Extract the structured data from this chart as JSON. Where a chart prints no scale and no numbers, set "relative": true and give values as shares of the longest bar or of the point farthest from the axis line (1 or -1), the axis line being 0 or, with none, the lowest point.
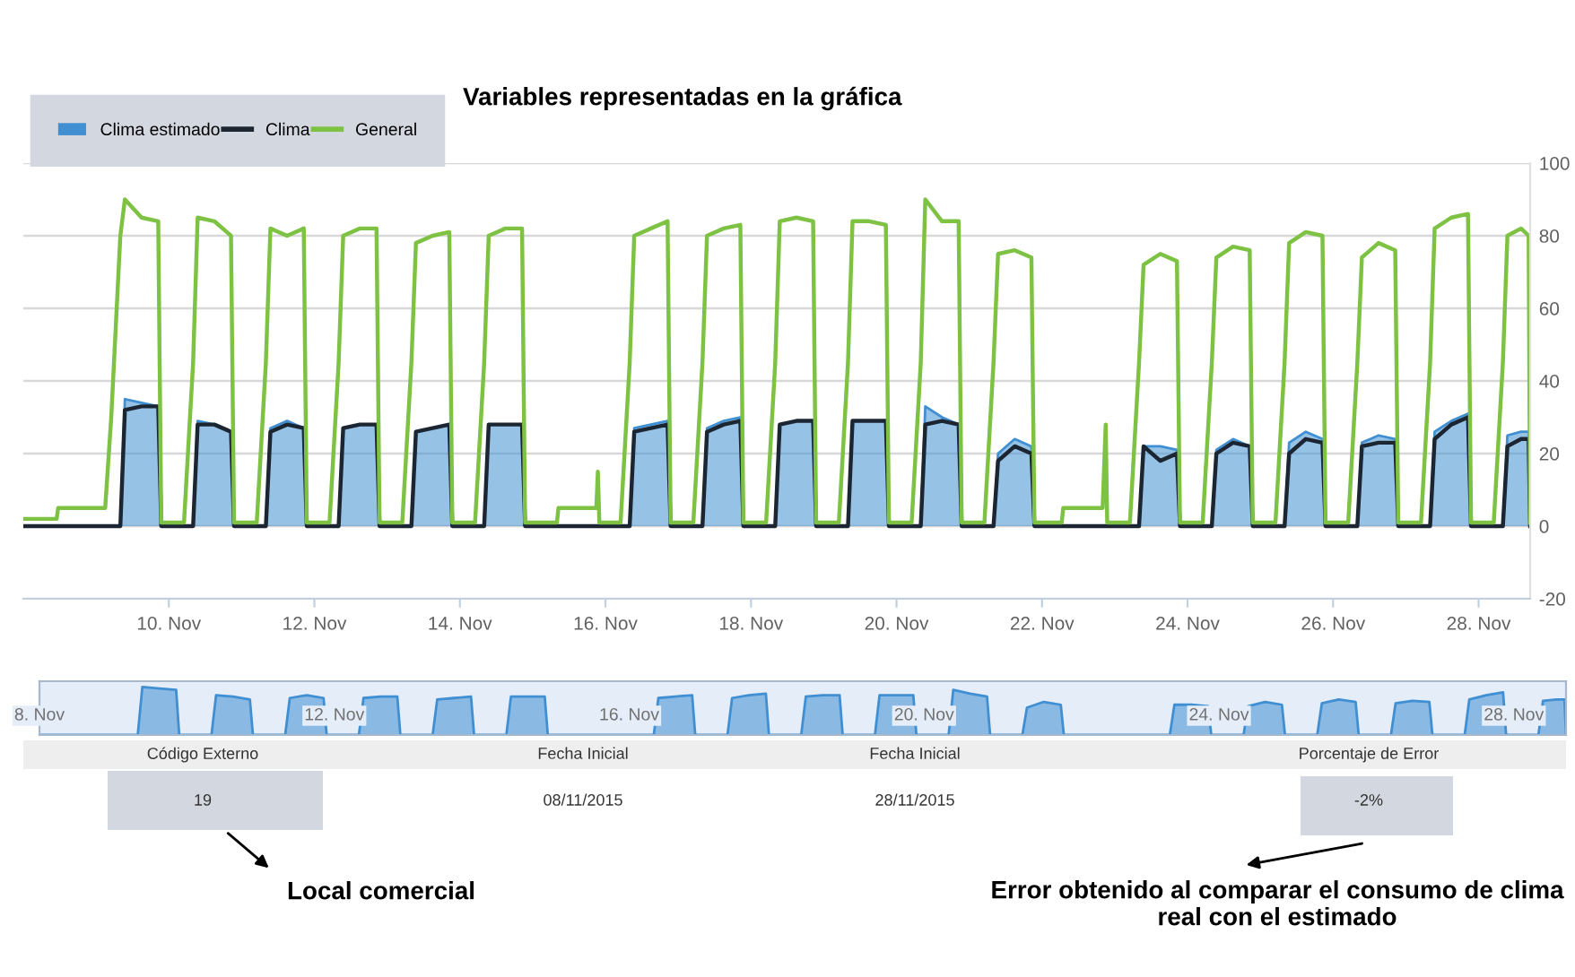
{
  "chart_data": [
    {
      "type": "line",
      "x": [
        "2015-11-08T00:00",
        "2015-11-08T11:00",
        "2015-11-08T11:30",
        "2015-11-09T03:00",
        "2015-11-09T05:00",
        "2015-11-09T08:00",
        "2015-11-09T09:30",
        "2015-11-09T15:00",
        "2015-11-09T20:30",
        "2015-11-09T21:30",
        "2015-11-10T05:00",
        "2015-11-10T08:00",
        "2015-11-10T09:30",
        "2015-11-10T15:00",
        "2015-11-10T20:30",
        "2015-11-10T21:30",
        "2015-11-11T05:00",
        "2015-11-11T08:00",
        "2015-11-11T09:30",
        "2015-11-11T15:00",
        "2015-11-11T20:30",
        "2015-11-11T21:30",
        "2015-11-12T05:00",
        "2015-11-12T08:00",
        "2015-11-12T09:30",
        "2015-11-12T15:00",
        "2015-11-12T20:30",
        "2015-11-12T21:30",
        "2015-11-13T05:00",
        "2015-11-13T08:00",
        "2015-11-13T09:30",
        "2015-11-13T15:00",
        "2015-11-13T20:30",
        "2015-11-13T21:30",
        "2015-11-14T05:00",
        "2015-11-14T08:00",
        "2015-11-14T09:30",
        "2015-11-14T15:00",
        "2015-11-14T20:30",
        "2015-11-14T21:30",
        "2015-11-15T08:00",
        "2015-11-15T08:30",
        "2015-11-15T21:00",
        "2015-11-15T21:30",
        "2015-11-15T22:00",
        "2015-11-16T05:00",
        "2015-11-16T08:00",
        "2015-11-16T09:30",
        "2015-11-16T15:00",
        "2015-11-16T20:30",
        "2015-11-16T21:30",
        "2015-11-17T05:00",
        "2015-11-17T08:00",
        "2015-11-17T09:30",
        "2015-11-17T15:00",
        "2015-11-17T20:30",
        "2015-11-17T21:30",
        "2015-11-18T05:00",
        "2015-11-18T08:00",
        "2015-11-18T09:30",
        "2015-11-18T15:00",
        "2015-11-18T20:30",
        "2015-11-18T21:30",
        "2015-11-19T05:00",
        "2015-11-19T08:00",
        "2015-11-19T09:30",
        "2015-11-19T15:00",
        "2015-11-19T20:30",
        "2015-11-19T21:30",
        "2015-11-20T05:00",
        "2015-11-20T08:00",
        "2015-11-20T09:30",
        "2015-11-20T15:00",
        "2015-11-20T20:30",
        "2015-11-20T21:30",
        "2015-11-21T05:00",
        "2015-11-21T08:00",
        "2015-11-21T09:30",
        "2015-11-21T15:00",
        "2015-11-21T20:30",
        "2015-11-21T21:30",
        "2015-11-22T06:30",
        "2015-11-22T07:00",
        "2015-11-22T20:00",
        "2015-11-22T21:00",
        "2015-11-22T21:30",
        "2015-11-23T05:00",
        "2015-11-23T08:00",
        "2015-11-23T09:30",
        "2015-11-23T15:00",
        "2015-11-23T20:30",
        "2015-11-23T21:30",
        "2015-11-24T05:00",
        "2015-11-24T08:00",
        "2015-11-24T09:30",
        "2015-11-24T15:00",
        "2015-11-24T20:30",
        "2015-11-24T21:30",
        "2015-11-25T05:00",
        "2015-11-25T08:00",
        "2015-11-25T09:30",
        "2015-11-25T15:00",
        "2015-11-25T20:30",
        "2015-11-25T21:30",
        "2015-11-26T05:00",
        "2015-11-26T08:00",
        "2015-11-26T09:30",
        "2015-11-26T15:00",
        "2015-11-26T20:30",
        "2015-11-26T21:30",
        "2015-11-27T05:00",
        "2015-11-27T08:00",
        "2015-11-27T09:30",
        "2015-11-27T15:00",
        "2015-11-27T20:30",
        "2015-11-27T21:30",
        "2015-11-28T05:00",
        "2015-11-28T08:00",
        "2015-11-28T09:30",
        "2015-11-28T14:00",
        "2015-11-28T16:30",
        "2015-11-28T17:00"
      ],
      "series": [
        {
          "name": "Clima estimado",
          "type": "area",
          "color": "#3f8fd2",
          "values": [
            0,
            0,
            0,
            0,
            0,
            0,
            35,
            34,
            33,
            0,
            0,
            0,
            29,
            28,
            26,
            0,
            0,
            0,
            27,
            29,
            27,
            0,
            0,
            0,
            27,
            28,
            28,
            0,
            0,
            0,
            26,
            27,
            28,
            0,
            0,
            0,
            28,
            28,
            28,
            0,
            0,
            0,
            0,
            0,
            0,
            0,
            0,
            27,
            28,
            29,
            0,
            0,
            0,
            27,
            29,
            30,
            0,
            0,
            0,
            28,
            29,
            29,
            0,
            0,
            0,
            29,
            29,
            29,
            0,
            0,
            0,
            33,
            30,
            28,
            0,
            0,
            0,
            20,
            24,
            22,
            0,
            0,
            0,
            0,
            0,
            0,
            0,
            0,
            22,
            22,
            21,
            0,
            0,
            0,
            21,
            24,
            22,
            0,
            0,
            0,
            23,
            26,
            24,
            0,
            0,
            0,
            23,
            25,
            24,
            0,
            0,
            0,
            26,
            29,
            31,
            0,
            0,
            0,
            25,
            26,
            26,
            0
          ]
        },
        {
          "name": "Clima",
          "type": "line",
          "color": "#1c2633",
          "values": [
            0,
            0,
            0,
            0,
            0,
            0,
            32,
            33,
            33,
            0,
            0,
            0,
            28,
            28,
            26,
            0,
            0,
            0,
            26,
            28,
            27,
            0,
            0,
            0,
            27,
            28,
            28,
            0,
            0,
            0,
            26,
            27,
            28,
            0,
            0,
            0,
            28,
            28,
            28,
            0,
            0,
            0,
            0,
            0,
            0,
            0,
            0,
            26,
            27,
            28,
            0,
            0,
            0,
            26,
            28,
            29,
            0,
            0,
            0,
            28,
            29,
            29,
            0,
            0,
            0,
            29,
            29,
            29,
            0,
            0,
            0,
            28,
            29,
            28,
            0,
            0,
            0,
            18,
            22,
            20,
            0,
            0,
            0,
            0,
            0,
            0,
            0,
            0,
            22,
            18,
            20,
            0,
            0,
            0,
            20,
            23,
            22,
            0,
            0,
            0,
            20,
            24,
            23,
            0,
            0,
            0,
            22,
            23,
            23,
            0,
            0,
            0,
            24,
            28,
            30,
            0,
            0,
            0,
            22,
            24,
            24,
            0
          ]
        },
        {
          "name": "General",
          "type": "line",
          "color": "#7dc243",
          "values": [
            2,
            2,
            5,
            5,
            30,
            80,
            90,
            85,
            84,
            1,
            1,
            45,
            85,
            84,
            80,
            1,
            1,
            45,
            82,
            80,
            82,
            1,
            1,
            45,
            80,
            82,
            82,
            1,
            1,
            45,
            78,
            80,
            81,
            1,
            1,
            45,
            80,
            82,
            82,
            1,
            1,
            5,
            5,
            15,
            1,
            1,
            45,
            80,
            82,
            84,
            1,
            1,
            45,
            80,
            82,
            83,
            1,
            1,
            45,
            84,
            85,
            84,
            1,
            1,
            45,
            84,
            84,
            83,
            1,
            1,
            45,
            90,
            84,
            84,
            1,
            1,
            45,
            75,
            76,
            74,
            1,
            1,
            5,
            5,
            28,
            1,
            1,
            45,
            72,
            75,
            73,
            1,
            1,
            45,
            74,
            77,
            76,
            1,
            1,
            45,
            78,
            81,
            80,
            1,
            1,
            45,
            74,
            78,
            76,
            1,
            1,
            45,
            82,
            85,
            86,
            1,
            1,
            45,
            80,
            82,
            80,
            1
          ]
        }
      ],
      "xlim": [
        "2015-11-08T00:00",
        "2015-11-28T17:00"
      ],
      "xticks": [
        {
          "value": "2015-11-10",
          "label": "10. Nov"
        },
        {
          "value": "2015-11-12",
          "label": "12. Nov"
        },
        {
          "value": "2015-11-14",
          "label": "14. Nov"
        },
        {
          "value": "2015-11-16",
          "label": "16. Nov"
        },
        {
          "value": "2015-11-18",
          "label": "18. Nov"
        },
        {
          "value": "2015-11-20",
          "label": "20. Nov"
        },
        {
          "value": "2015-11-22",
          "label": "22. Nov"
        },
        {
          "value": "2015-11-24",
          "label": "24. Nov"
        },
        {
          "value": "2015-11-26",
          "label": "26. Nov"
        },
        {
          "value": "2015-11-28",
          "label": "28. Nov"
        }
      ],
      "ylim": [
        -20,
        100
      ],
      "yticks": [
        -20,
        0,
        20,
        40,
        60,
        80,
        100
      ],
      "grid": "y",
      "legend": "top left",
      "annotations": [
        "Variables representadas en la gráfica"
      ]
    },
    {
      "type": "area",
      "x": [
        "2015-11-08T00:00",
        "2015-11-08T11:00",
        "2015-11-08T11:30",
        "2015-11-09T03:00",
        "2015-11-09T05:00",
        "2015-11-09T08:00",
        "2015-11-09T09:30",
        "2015-11-09T15:00",
        "2015-11-09T20:30",
        "2015-11-09T21:30",
        "2015-11-10T05:00",
        "2015-11-10T08:00",
        "2015-11-10T09:30",
        "2015-11-10T15:00",
        "2015-11-10T20:30",
        "2015-11-10T21:30",
        "2015-11-11T05:00",
        "2015-11-11T08:00",
        "2015-11-11T09:30",
        "2015-11-11T15:00",
        "2015-11-11T20:30",
        "2015-11-11T21:30",
        "2015-11-12T05:00",
        "2015-11-12T08:00",
        "2015-11-12T09:30",
        "2015-11-12T15:00",
        "2015-11-12T20:30",
        "2015-11-12T21:30",
        "2015-11-13T05:00",
        "2015-11-13T08:00",
        "2015-11-13T09:30",
        "2015-11-13T15:00",
        "2015-11-13T20:30",
        "2015-11-13T21:30",
        "2015-11-14T05:00",
        "2015-11-14T08:00",
        "2015-11-14T09:30",
        "2015-11-14T15:00",
        "2015-11-14T20:30",
        "2015-11-14T21:30",
        "2015-11-15T08:00",
        "2015-11-15T08:30",
        "2015-11-15T21:00",
        "2015-11-15T21:30",
        "2015-11-15T22:00",
        "2015-11-16T05:00",
        "2015-11-16T08:00",
        "2015-11-16T09:30",
        "2015-11-16T15:00",
        "2015-11-16T20:30",
        "2015-11-16T21:30",
        "2015-11-17T05:00",
        "2015-11-17T08:00",
        "2015-11-17T09:30",
        "2015-11-17T15:00",
        "2015-11-17T20:30",
        "2015-11-17T21:30",
        "2015-11-18T05:00",
        "2015-11-18T08:00",
        "2015-11-18T09:30",
        "2015-11-18T15:00",
        "2015-11-18T20:30",
        "2015-11-18T21:30",
        "2015-11-19T05:00",
        "2015-11-19T08:00",
        "2015-11-19T09:30",
        "2015-11-19T15:00",
        "2015-11-19T20:30",
        "2015-11-19T21:30",
        "2015-11-20T05:00",
        "2015-11-20T08:00",
        "2015-11-20T09:30",
        "2015-11-20T15:00",
        "2015-11-20T20:30",
        "2015-11-20T21:30",
        "2015-11-21T05:00",
        "2015-11-21T08:00",
        "2015-11-21T09:30",
        "2015-11-21T15:00",
        "2015-11-21T20:30",
        "2015-11-21T21:30",
        "2015-11-22T06:30",
        "2015-11-22T07:00",
        "2015-11-22T20:00",
        "2015-11-22T21:00",
        "2015-11-22T21:30",
        "2015-11-23T05:00",
        "2015-11-23T08:00",
        "2015-11-23T09:30",
        "2015-11-23T15:00",
        "2015-11-23T20:30",
        "2015-11-23T21:30",
        "2015-11-24T05:00",
        "2015-11-24T08:00",
        "2015-11-24T09:30",
        "2015-11-24T15:00",
        "2015-11-24T20:30",
        "2015-11-24T21:30",
        "2015-11-25T05:00",
        "2015-11-25T08:00",
        "2015-11-25T09:30",
        "2015-11-25T15:00",
        "2015-11-25T20:30",
        "2015-11-25T21:30",
        "2015-11-26T05:00",
        "2015-11-26T08:00",
        "2015-11-26T09:30",
        "2015-11-26T15:00",
        "2015-11-26T20:30",
        "2015-11-26T21:30",
        "2015-11-27T05:00",
        "2015-11-27T08:00",
        "2015-11-27T09:30",
        "2015-11-27T15:00",
        "2015-11-27T20:30",
        "2015-11-27T21:30",
        "2015-11-28T05:00",
        "2015-11-28T08:00",
        "2015-11-28T09:30",
        "2015-11-28T14:00",
        "2015-11-28T16:30",
        "2015-11-28T17:00"
      ],
      "values": [
        0,
        0,
        0,
        0,
        0,
        0,
        1,
        0.97,
        0.94,
        0,
        0,
        0,
        0.83,
        0.8,
        0.74,
        0,
        0,
        0,
        0.77,
        0.83,
        0.77,
        0,
        0,
        0,
        0.77,
        0.8,
        0.8,
        0,
        0,
        0,
        0.74,
        0.77,
        0.8,
        0,
        0,
        0,
        0.8,
        0.8,
        0.8,
        0,
        0,
        0,
        0,
        0,
        0,
        0,
        0,
        0.77,
        0.8,
        0.83,
        0,
        0,
        0,
        0.77,
        0.83,
        0.86,
        0,
        0,
        0,
        0.8,
        0.83,
        0.83,
        0,
        0,
        0,
        0.83,
        0.83,
        0.83,
        0,
        0,
        0,
        0.94,
        0.86,
        0.8,
        0,
        0,
        0,
        0.57,
        0.69,
        0.63,
        0,
        0,
        0,
        0,
        0,
        0,
        0,
        0,
        0.63,
        0.63,
        0.6,
        0,
        0,
        0,
        0.6,
        0.69,
        0.63,
        0,
        0,
        0,
        0.66,
        0.74,
        0.69,
        0,
        0,
        0,
        0.66,
        0.71,
        0.69,
        0,
        0,
        0,
        0.74,
        0.83,
        0.89,
        0,
        0,
        0,
        0.71,
        0.74,
        0.74,
        0
      ],
      "relative": true,
      "color": "#3f8fd2",
      "xlim": [
        "2015-11-08T00:00",
        "2015-11-28T17:00"
      ],
      "xticks": [
        {
          "value": "2015-11-08",
          "label": "8. Nov"
        },
        {
          "value": "2015-11-12",
          "label": "12. Nov"
        },
        {
          "value": "2015-11-16",
          "label": "16. Nov"
        },
        {
          "value": "2015-11-20",
          "label": "20. Nov"
        },
        {
          "value": "2015-11-24",
          "label": "24. Nov"
        },
        {
          "value": "2015-11-28",
          "label": "28. Nov"
        }
      ],
      "tick_labels": "x"
    },
    {
      "type": "other",
      "categories": [
        "Código Externo",
        "Fecha Inicial",
        "Fecha Inicial",
        "Porcentaje de Error"
      ],
      "value_labels": [
        "19",
        "08/11/2015",
        "28/11/2015",
        "-2%"
      ],
      "annotations": [
        "Local comercial",
        "Error obtenido al comparar el consumo de clima real con el estimado"
      ]
    }
  ]
}
